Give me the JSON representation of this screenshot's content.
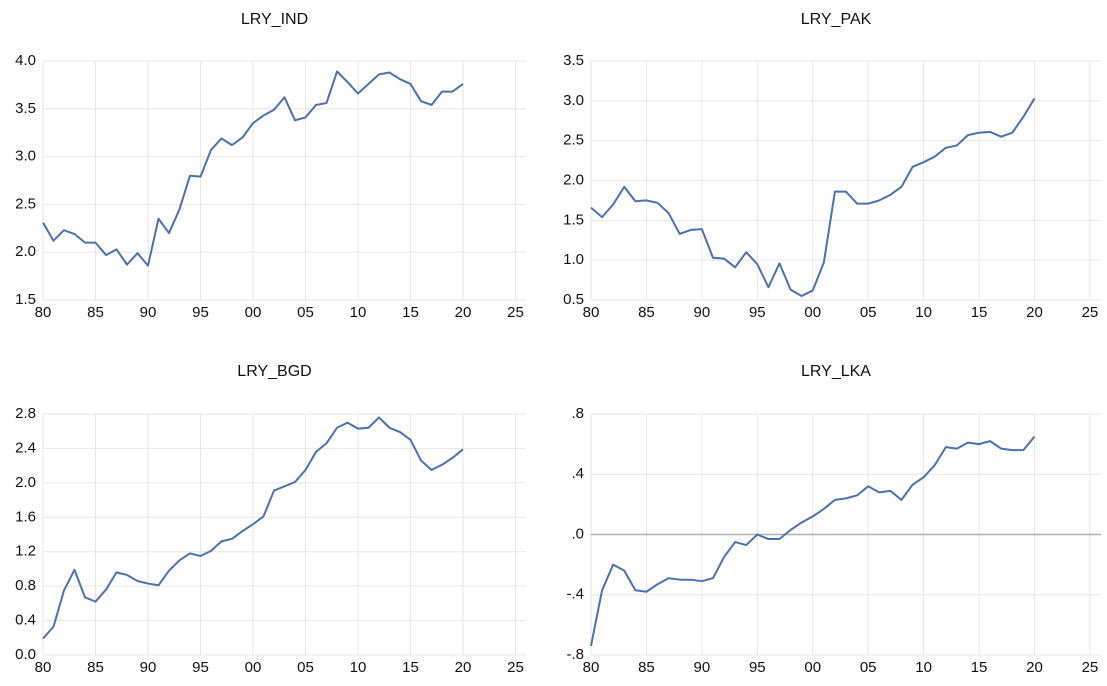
{
  "chart_data": [
    {
      "type": "line",
      "title": "LRY_IND",
      "x": [
        1980,
        1981,
        1982,
        1983,
        1984,
        1985,
        1986,
        1987,
        1988,
        1989,
        1990,
        1991,
        1992,
        1993,
        1994,
        1995,
        1996,
        1997,
        1998,
        1999,
        2000,
        2001,
        2002,
        2003,
        2004,
        2005,
        2006,
        2007,
        2008,
        2009,
        2010,
        2011,
        2012,
        2013,
        2014,
        2015,
        2016,
        2017,
        2018,
        2019,
        2020
      ],
      "series": [
        {
          "color": "#4a72b0",
          "values": [
            2.31,
            2.12,
            2.23,
            2.19,
            2.1,
            2.1,
            1.97,
            2.03,
            1.87,
            1.99,
            1.86,
            2.35,
            2.2,
            2.45,
            2.8,
            2.79,
            3.07,
            3.19,
            3.12,
            3.2,
            3.35,
            3.43,
            3.49,
            3.62,
            3.38,
            3.41,
            3.54,
            3.56,
            3.89,
            3.78,
            3.66,
            3.76,
            3.86,
            3.88,
            3.81,
            3.76,
            3.58,
            3.54,
            3.68,
            3.68,
            3.76
          ]
        }
      ],
      "xlim": [
        1980,
        2026
      ],
      "xticks": [
        {
          "value": 1980,
          "label": "80"
        },
        {
          "value": 1985,
          "label": "85"
        },
        {
          "value": 1990,
          "label": "90"
        },
        {
          "value": 1995,
          "label": "95"
        },
        {
          "value": 2000,
          "label": "00"
        },
        {
          "value": 2005,
          "label": "05"
        },
        {
          "value": 2010,
          "label": "10"
        },
        {
          "value": 2015,
          "label": "15"
        },
        {
          "value": 2020,
          "label": "20"
        },
        {
          "value": 2025,
          "label": "25"
        }
      ],
      "ylim": [
        1.5,
        4.0
      ],
      "yticks": [
        1.5,
        {
          "value": 2.0,
          "label": "2.0"
        },
        2.5,
        {
          "value": 3.0,
          "label": "3.0"
        },
        3.5,
        {
          "value": 4.0,
          "label": "4.0"
        }
      ],
      "grid": true
    },
    {
      "type": "line",
      "title": "LRY_PAK",
      "x": [
        1980,
        1981,
        1982,
        1983,
        1984,
        1985,
        1986,
        1987,
        1988,
        1989,
        1990,
        1991,
        1992,
        1993,
        1994,
        1995,
        1996,
        1997,
        1998,
        1999,
        2000,
        2001,
        2002,
        2003,
        2004,
        2005,
        2006,
        2007,
        2008,
        2009,
        2010,
        2011,
        2012,
        2013,
        2014,
        2015,
        2016,
        2017,
        2018,
        2019,
        2020
      ],
      "series": [
        {
          "color": "#4a72b0",
          "values": [
            1.66,
            1.54,
            1.7,
            1.92,
            1.74,
            1.75,
            1.72,
            1.59,
            1.33,
            1.38,
            1.39,
            1.03,
            1.02,
            0.91,
            1.1,
            0.95,
            0.66,
            0.96,
            0.63,
            0.55,
            0.62,
            0.97,
            1.86,
            1.86,
            1.71,
            1.71,
            1.75,
            1.82,
            1.92,
            2.17,
            2.23,
            2.3,
            2.41,
            2.44,
            2.57,
            2.6,
            2.61,
            2.55,
            2.6,
            2.8,
            3.03
          ]
        }
      ],
      "xlim": [
        1980,
        2026
      ],
      "xticks": [
        {
          "value": 1980,
          "label": "80"
        },
        {
          "value": 1985,
          "label": "85"
        },
        {
          "value": 1990,
          "label": "90"
        },
        {
          "value": 1995,
          "label": "95"
        },
        {
          "value": 2000,
          "label": "00"
        },
        {
          "value": 2005,
          "label": "05"
        },
        {
          "value": 2010,
          "label": "10"
        },
        {
          "value": 2015,
          "label": "15"
        },
        {
          "value": 2020,
          "label": "20"
        },
        {
          "value": 2025,
          "label": "25"
        }
      ],
      "ylim": [
        0.5,
        3.5
      ],
      "yticks": [
        0.5,
        {
          "value": 1.0,
          "label": "1.0"
        },
        1.5,
        {
          "value": 2.0,
          "label": "2.0"
        },
        2.5,
        {
          "value": 3.0,
          "label": "3.0"
        },
        3.5
      ],
      "grid": true
    },
    {
      "type": "line",
      "title": "LRY_BGD",
      "x": [
        1980,
        1981,
        1982,
        1983,
        1984,
        1985,
        1986,
        1987,
        1988,
        1989,
        1990,
        1991,
        1992,
        1993,
        1994,
        1995,
        1996,
        1997,
        1998,
        1999,
        2000,
        2001,
        2002,
        2003,
        2004,
        2005,
        2006,
        2007,
        2008,
        2009,
        2010,
        2011,
        2012,
        2013,
        2014,
        2015,
        2016,
        2017,
        2018,
        2019,
        2020
      ],
      "series": [
        {
          "color": "#4a72b0",
          "values": [
            0.19,
            0.33,
            0.75,
            0.99,
            0.67,
            0.62,
            0.76,
            0.96,
            0.93,
            0.86,
            0.83,
            0.81,
            0.98,
            1.1,
            1.18,
            1.15,
            1.21,
            1.32,
            1.35,
            1.44,
            1.52,
            1.61,
            1.91,
            1.96,
            2.01,
            2.15,
            2.36,
            2.46,
            2.64,
            2.7,
            2.63,
            2.64,
            2.76,
            2.64,
            2.59,
            2.5,
            2.26,
            2.15,
            2.21,
            2.29,
            2.39
          ]
        }
      ],
      "xlim": [
        1980,
        2026
      ],
      "xticks": [
        {
          "value": 1980,
          "label": "80"
        },
        {
          "value": 1985,
          "label": "85"
        },
        {
          "value": 1990,
          "label": "90"
        },
        {
          "value": 1995,
          "label": "95"
        },
        {
          "value": 2000,
          "label": "00"
        },
        {
          "value": 2005,
          "label": "05"
        },
        {
          "value": 2010,
          "label": "10"
        },
        {
          "value": 2015,
          "label": "15"
        },
        {
          "value": 2020,
          "label": "20"
        },
        {
          "value": 2025,
          "label": "25"
        }
      ],
      "ylim": [
        0.0,
        2.8
      ],
      "yticks": [
        {
          "value": 0.0,
          "label": "0.0"
        },
        0.4,
        0.8,
        1.2,
        1.6,
        {
          "value": 2.0,
          "label": "2.0"
        },
        2.4,
        2.8
      ],
      "grid": true
    },
    {
      "type": "line",
      "title": "LRY_LKA",
      "x": [
        1980,
        1981,
        1982,
        1983,
        1984,
        1985,
        1986,
        1987,
        1988,
        1989,
        1990,
        1991,
        1992,
        1993,
        1994,
        1995,
        1996,
        1997,
        1998,
        1999,
        2000,
        2001,
        2002,
        2003,
        2004,
        2005,
        2006,
        2007,
        2008,
        2009,
        2010,
        2011,
        2012,
        2013,
        2014,
        2015,
        2016,
        2017,
        2018,
        2019,
        2020
      ],
      "series": [
        {
          "color": "#4a72b0",
          "values": [
            -0.74,
            -0.37,
            -0.2,
            -0.24,
            -0.37,
            -0.38,
            -0.33,
            -0.29,
            -0.3,
            -0.3,
            -0.31,
            -0.29,
            -0.15,
            -0.05,
            -0.07,
            0.0,
            -0.03,
            -0.03,
            0.03,
            0.08,
            0.12,
            0.17,
            0.23,
            0.24,
            0.26,
            0.32,
            0.28,
            0.29,
            0.23,
            0.33,
            0.38,
            0.46,
            0.58,
            0.57,
            0.61,
            0.6,
            0.62,
            0.57,
            0.56,
            0.56,
            0.65
          ]
        }
      ],
      "xlim": [
        1980,
        2026
      ],
      "xticks": [
        {
          "value": 1980,
          "label": "80"
        },
        {
          "value": 1985,
          "label": "85"
        },
        {
          "value": 1990,
          "label": "90"
        },
        {
          "value": 1995,
          "label": "95"
        },
        {
          "value": 2000,
          "label": "00"
        },
        {
          "value": 2005,
          "label": "05"
        },
        {
          "value": 2010,
          "label": "10"
        },
        {
          "value": 2015,
          "label": "15"
        },
        {
          "value": 2020,
          "label": "20"
        },
        {
          "value": 2025,
          "label": "25"
        }
      ],
      "ylim": [
        -0.8,
        0.8
      ],
      "yticks": [
        {
          "value": -0.8,
          "label": "-.8"
        },
        {
          "value": -0.4,
          "label": "-.4"
        },
        {
          "value": 0.0,
          "label": ".0"
        },
        {
          "value": 0.4,
          "label": ".4"
        },
        {
          "value": 0.8,
          "label": ".8"
        }
      ],
      "grid": true,
      "zero_line": true
    }
  ]
}
